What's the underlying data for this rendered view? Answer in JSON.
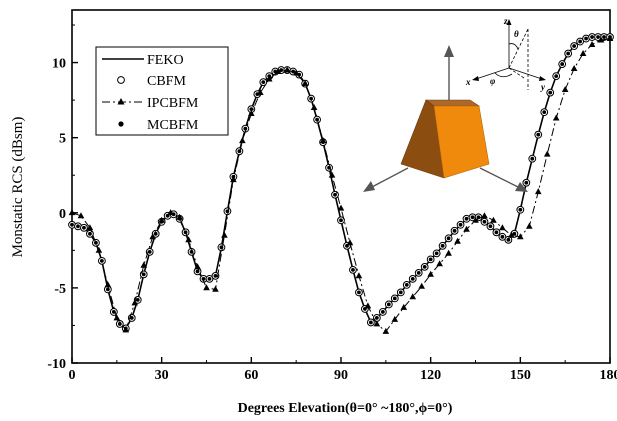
{
  "chart_data": {
    "type": "line",
    "xlabel": "Degrees Elevation(θ=0° ~180°,ϕ=0°)",
    "ylabel": "Monstatic RCS (dBsm)",
    "xlim": [
      0,
      180
    ],
    "ylim": [
      -10,
      13.5
    ],
    "x_ticks": [
      0,
      30,
      60,
      90,
      120,
      150,
      180
    ],
    "x_tick_labels": [
      "0",
      "30",
      "60",
      "90",
      "120",
      "150",
      "180"
    ],
    "y_ticks": [
      -10,
      -5,
      0,
      5,
      10
    ],
    "y_tick_labels": [
      "-10",
      "-5",
      "0",
      "5",
      "10"
    ],
    "grid": false,
    "legend_position": "top-left",
    "series": [
      {
        "name": "FEKO",
        "style": "solid-line",
        "color": "#000000",
        "x": [
          0,
          2,
          4,
          6,
          8,
          10,
          12,
          14,
          16,
          18,
          20,
          22,
          24,
          26,
          28,
          30,
          32,
          34,
          36,
          38,
          40,
          42,
          44,
          46,
          48,
          50,
          52,
          54,
          56,
          58,
          60,
          62,
          64,
          66,
          68,
          70,
          72,
          74,
          76,
          78,
          80,
          82,
          84,
          86,
          88,
          90,
          92,
          94,
          96,
          98,
          100,
          102,
          104,
          106,
          108,
          110,
          112,
          114,
          116,
          118,
          120,
          122,
          124,
          126,
          128,
          130,
          132,
          134,
          136,
          138,
          140,
          142,
          144,
          146,
          148,
          150,
          152,
          154,
          156,
          158,
          160,
          162,
          164,
          166,
          168,
          170,
          172,
          174,
          176,
          178,
          180
        ],
        "y": [
          -0.8,
          -0.9,
          -1.0,
          -1.4,
          -2.0,
          -3.2,
          -5.1,
          -6.6,
          -7.4,
          -7.7,
          -7.0,
          -5.8,
          -4.1,
          -2.6,
          -1.4,
          -0.6,
          -0.2,
          -0.1,
          -0.4,
          -1.3,
          -2.6,
          -3.9,
          -4.4,
          -4.4,
          -4.2,
          -2.3,
          0.1,
          2.4,
          4.1,
          5.6,
          6.9,
          7.9,
          8.7,
          9.1,
          9.4,
          9.5,
          9.5,
          9.4,
          9.2,
          8.6,
          7.6,
          6.2,
          4.7,
          3.0,
          1.2,
          -0.5,
          -2.2,
          -3.8,
          -5.3,
          -6.4,
          -7.3,
          -7.0,
          -6.6,
          -6.1,
          -5.7,
          -5.3,
          -4.8,
          -4.4,
          -4.0,
          -3.6,
          -3.1,
          -2.7,
          -2.2,
          -1.7,
          -1.2,
          -0.8,
          -0.4,
          -0.3,
          -0.3,
          -0.6,
          -0.9,
          -1.3,
          -1.6,
          -1.8,
          -1.4,
          0.2,
          2.0,
          3.6,
          5.2,
          6.7,
          8.0,
          9.1,
          9.9,
          10.6,
          11.1,
          11.4,
          11.6,
          11.7,
          11.7,
          11.7,
          11.7
        ]
      },
      {
        "name": "CBFM",
        "style": "open-circle",
        "color": "#000000",
        "x": [
          0,
          2,
          4,
          6,
          8,
          10,
          12,
          14,
          16,
          18,
          20,
          22,
          24,
          26,
          28,
          30,
          32,
          34,
          36,
          38,
          40,
          42,
          44,
          46,
          48,
          50,
          52,
          54,
          56,
          58,
          60,
          62,
          64,
          66,
          68,
          70,
          72,
          74,
          76,
          78,
          80,
          82,
          84,
          86,
          88,
          90,
          92,
          94,
          96,
          98,
          100,
          102,
          104,
          106,
          108,
          110,
          112,
          114,
          116,
          118,
          120,
          122,
          124,
          126,
          128,
          130,
          132,
          134,
          136,
          138,
          140,
          142,
          144,
          146,
          148,
          150,
          152,
          154,
          156,
          158,
          160,
          162,
          164,
          166,
          168,
          170,
          172,
          174,
          176,
          178,
          180
        ],
        "y": [
          -0.8,
          -0.9,
          -1.0,
          -1.4,
          -2.0,
          -3.2,
          -5.1,
          -6.6,
          -7.4,
          -7.7,
          -7.0,
          -5.8,
          -4.1,
          -2.6,
          -1.4,
          -0.6,
          -0.2,
          -0.1,
          -0.4,
          -1.3,
          -2.6,
          -3.9,
          -4.4,
          -4.4,
          -4.2,
          -2.3,
          0.1,
          2.4,
          4.1,
          5.6,
          6.9,
          7.9,
          8.7,
          9.1,
          9.4,
          9.5,
          9.5,
          9.4,
          9.2,
          8.6,
          7.6,
          6.2,
          4.7,
          3.0,
          1.2,
          -0.5,
          -2.2,
          -3.8,
          -5.3,
          -6.4,
          -7.3,
          -7.0,
          -6.6,
          -6.1,
          -5.7,
          -5.3,
          -4.8,
          -4.4,
          -4.0,
          -3.6,
          -3.1,
          -2.7,
          -2.2,
          -1.7,
          -1.2,
          -0.8,
          -0.4,
          -0.3,
          -0.3,
          -0.6,
          -0.9,
          -1.3,
          -1.6,
          -1.8,
          -1.4,
          0.2,
          2.0,
          3.6,
          5.2,
          6.7,
          8.0,
          9.1,
          9.9,
          10.6,
          11.1,
          11.4,
          11.6,
          11.7,
          11.7,
          11.7,
          11.7
        ]
      },
      {
        "name": "IPCBFM",
        "style": "dash-dot-triangle",
        "color": "#000000",
        "x": [
          0,
          3,
          6,
          9,
          12,
          15,
          18,
          21,
          24,
          27,
          30,
          33,
          36,
          39,
          42,
          45,
          48,
          51,
          54,
          57,
          60,
          63,
          66,
          69,
          72,
          75,
          78,
          81,
          84,
          87,
          90,
          93,
          96,
          99,
          102,
          105,
          108,
          111,
          114,
          117,
          120,
          123,
          126,
          129,
          132,
          135,
          138,
          141,
          144,
          147,
          150,
          153,
          156,
          159,
          162,
          165,
          168,
          171,
          174,
          177,
          180
        ],
        "y": [
          0.0,
          -0.2,
          -1.0,
          -2.5,
          -4.8,
          -7.0,
          -7.8,
          -6.0,
          -3.5,
          -1.6,
          -0.5,
          0.0,
          -0.3,
          -1.8,
          -3.6,
          -5.0,
          -5.1,
          -1.5,
          2.2,
          4.8,
          6.6,
          8.0,
          8.9,
          9.4,
          9.5,
          9.3,
          8.6,
          7.0,
          4.8,
          2.5,
          0.3,
          -2.0,
          -4.2,
          -6.2,
          -7.4,
          -7.9,
          -7.1,
          -6.3,
          -5.6,
          -4.9,
          -4.1,
          -3.4,
          -2.7,
          -1.9,
          -1.1,
          -0.5,
          -0.2,
          -0.5,
          -1.0,
          -1.5,
          -1.6,
          -0.9,
          1.4,
          3.9,
          6.3,
          8.2,
          9.6,
          10.6,
          11.2,
          11.5,
          11.6
        ]
      },
      {
        "name": "MCBFM",
        "style": "filled-circle",
        "color": "#000000",
        "x": [
          0,
          2,
          4,
          6,
          8,
          10,
          12,
          14,
          16,
          18,
          20,
          22,
          24,
          26,
          28,
          30,
          32,
          34,
          36,
          38,
          40,
          42,
          44,
          46,
          48,
          50,
          52,
          54,
          56,
          58,
          60,
          62,
          64,
          66,
          68,
          70,
          72,
          74,
          76,
          78,
          80,
          82,
          84,
          86,
          88,
          90,
          92,
          94,
          96,
          98,
          100,
          102,
          104,
          106,
          108,
          110,
          112,
          114,
          116,
          118,
          120,
          122,
          124,
          126,
          128,
          130,
          132,
          134,
          136,
          138,
          140,
          142,
          144,
          146,
          148,
          150,
          152,
          154,
          156,
          158,
          160,
          162,
          164,
          166,
          168,
          170,
          172,
          174,
          176,
          178,
          180
        ],
        "y": [
          -0.8,
          -0.9,
          -1.0,
          -1.4,
          -2.0,
          -3.2,
          -5.1,
          -6.6,
          -7.4,
          -7.7,
          -7.0,
          -5.8,
          -4.1,
          -2.6,
          -1.4,
          -0.6,
          -0.2,
          -0.1,
          -0.4,
          -1.3,
          -2.6,
          -3.9,
          -4.4,
          -4.4,
          -4.2,
          -2.3,
          0.1,
          2.4,
          4.1,
          5.6,
          6.9,
          7.9,
          8.7,
          9.1,
          9.4,
          9.5,
          9.5,
          9.4,
          9.2,
          8.6,
          7.6,
          6.2,
          4.7,
          3.0,
          1.2,
          -0.5,
          -2.2,
          -3.8,
          -5.3,
          -6.4,
          -7.3,
          -7.0,
          -6.6,
          -6.1,
          -5.7,
          -5.3,
          -4.8,
          -4.4,
          -4.0,
          -3.6,
          -3.1,
          -2.7,
          -2.2,
          -1.7,
          -1.2,
          -0.8,
          -0.4,
          -0.3,
          -0.3,
          -0.6,
          -0.9,
          -1.3,
          -1.6,
          -1.8,
          -1.4,
          0.2,
          2.0,
          3.6,
          5.2,
          6.7,
          8.0,
          9.1,
          9.9,
          10.6,
          11.1,
          11.4,
          11.6,
          11.7,
          11.7,
          11.7,
          11.7
        ]
      }
    ],
    "inset": {
      "object": "frustum-of-pyramid",
      "colors": {
        "front": "#f08a0c",
        "side": "#8c4e10",
        "top": "#ab6828",
        "arrows": "#555555"
      },
      "axis_labels": [
        "z",
        "θ",
        "x",
        "φ",
        "y"
      ]
    }
  }
}
